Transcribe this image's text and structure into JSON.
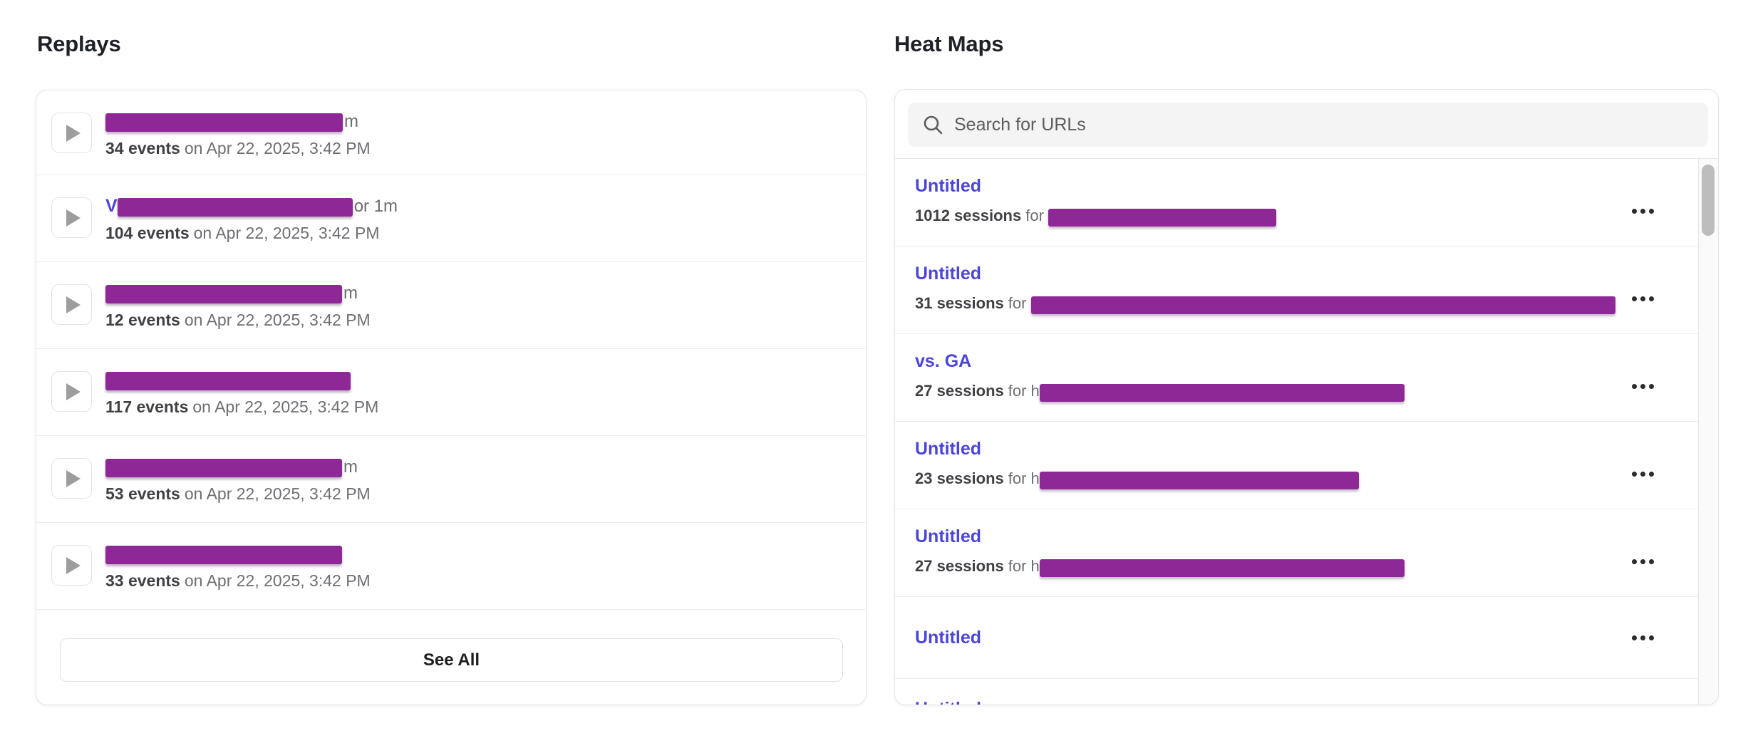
{
  "colors": {
    "redaction_purple": "#8e2897",
    "link_blue": "#4b45d8",
    "heading_text": "#1e2126",
    "meta_text": "#6e6e73"
  },
  "replays": {
    "title": "Replays",
    "see_all_label": "See All",
    "items": [
      {
        "visible_prefix": "",
        "redacted_width": 333,
        "visible_tail": "m",
        "events_count": "34 events",
        "meta_rest": "on Apr 22, 2025, 3:42 PM"
      },
      {
        "visible_prefix": "V",
        "redacted_width": 330,
        "visible_tail": "or 1m",
        "events_count": "104 events",
        "meta_rest": "on Apr 22, 2025, 3:42 PM"
      },
      {
        "visible_prefix": "",
        "redacted_width": 332,
        "visible_tail": "m",
        "events_count": "12 events",
        "meta_rest": "on Apr 22, 2025, 3:42 PM"
      },
      {
        "visible_prefix": "",
        "redacted_width": 344,
        "visible_tail": "",
        "events_count": "117 events",
        "meta_rest": "on Apr 22, 2025, 3:42 PM"
      },
      {
        "visible_prefix": "",
        "redacted_width": 332,
        "visible_tail": "m",
        "events_count": "53 events",
        "meta_rest": "on Apr 22, 2025, 3:42 PM"
      },
      {
        "visible_prefix": "",
        "redacted_width": 332,
        "visible_tail": "",
        "events_count": "33 events",
        "meta_rest": "on Apr 22, 2025, 3:42 PM"
      }
    ]
  },
  "heatmaps": {
    "title": "Heat Maps",
    "search": {
      "placeholder": "Search for URLs"
    },
    "items": [
      {
        "name": "Untitled",
        "sessions_count": "1012 sessions",
        "for_label": "for ",
        "url_prefix": "",
        "redacted_url_width": 320
      },
      {
        "name": "Untitled",
        "sessions_count": "31 sessions",
        "for_label": "for ",
        "url_prefix": "",
        "redacted_url_width": 820
      },
      {
        "name": "vs. GA",
        "sessions_count": "27 sessions",
        "for_label": "for ",
        "url_prefix": "h",
        "redacted_url_width": 512
      },
      {
        "name": "Untitled",
        "sessions_count": "23 sessions",
        "for_label": "for ",
        "url_prefix": "h",
        "redacted_url_width": 448
      },
      {
        "name": "Untitled",
        "sessions_count": "27 sessions",
        "for_label": "for ",
        "url_prefix": "h",
        "redacted_url_width": 512
      },
      {
        "name": "Untitled"
      }
    ],
    "clipped_item": {
      "name": "Untitled"
    }
  }
}
